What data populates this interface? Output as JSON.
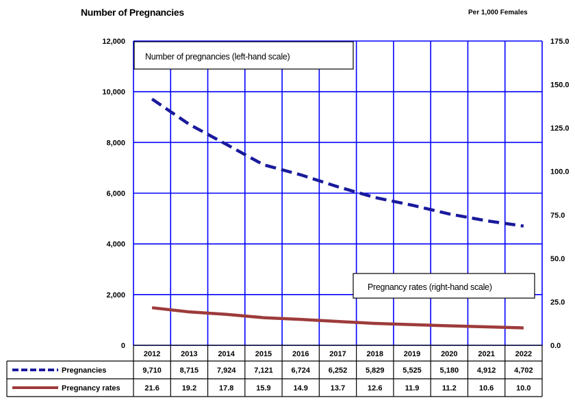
{
  "header": {
    "left_title": "Number of Pregnancies",
    "right_title": "Per 1,000 Females"
  },
  "chart_data": {
    "type": "line",
    "categories": [
      "2012",
      "2013",
      "2014",
      "2015",
      "2016",
      "2017",
      "2018",
      "2019",
      "2020",
      "2021",
      "2022"
    ],
    "series": [
      {
        "name": "Pregnancies",
        "axis": "left",
        "style": "dashed",
        "color": "#1a1a9c",
        "values": [
          9710,
          8715,
          7924,
          7121,
          6724,
          6252,
          5829,
          5525,
          5180,
          4912,
          4702
        ],
        "labels": [
          "9,710",
          "8,715",
          "7,924",
          "7,121",
          "6,724",
          "6,252",
          "5,829",
          "5,525",
          "5,180",
          "4,912",
          "4,702"
        ]
      },
      {
        "name": "Pregnancy rates",
        "axis": "right",
        "style": "solid",
        "color": "#9e3b3b",
        "values": [
          21.6,
          19.2,
          17.8,
          15.9,
          14.9,
          13.7,
          12.6,
          11.9,
          11.2,
          10.6,
          10.0
        ],
        "labels": [
          "21.6",
          "19.2",
          "17.8",
          "15.9",
          "14.9",
          "13.7",
          "12.6",
          "11.9",
          "11.2",
          "10.6",
          "10.0"
        ]
      }
    ],
    "left_axis": {
      "ylim": [
        0,
        12000
      ],
      "ticks": [
        0,
        2000,
        4000,
        6000,
        8000,
        10000,
        12000
      ],
      "tick_labels": [
        "0",
        "2,000",
        "4,000",
        "6,000",
        "8,000",
        "10,000",
        "12,000"
      ]
    },
    "right_axis": {
      "ylim": [
        0,
        175
      ],
      "ticks": [
        0,
        25,
        50,
        75,
        100,
        125,
        150,
        175
      ],
      "tick_labels": [
        "0.0",
        "25.0",
        "50.0",
        "75.0",
        "100.0",
        "125.0",
        "150.0",
        "175.0"
      ]
    },
    "annotations": [
      "Number of pregnancies (left-hand scale)",
      "Pregnancy rates (right-hand scale)"
    ],
    "grid": true,
    "grid_color": "#0000ff",
    "legend_placement": "data table below plot"
  }
}
